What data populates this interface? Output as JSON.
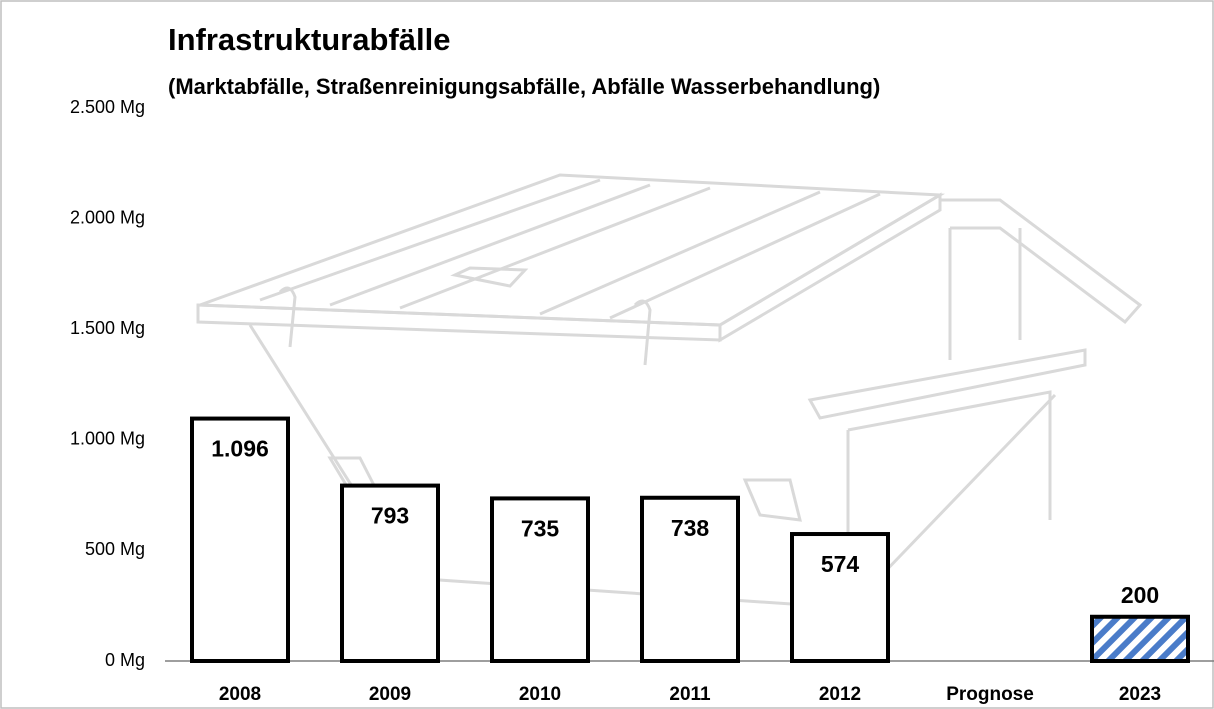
{
  "chart_data": {
    "type": "bar",
    "title": "Infrastrukturabfälle",
    "subtitle": "(Marktabfälle, Straßenreinigungsabfälle, Abfälle Wasserbehandlung)",
    "categories": [
      "2008",
      "2009",
      "2010",
      "2011",
      "2012",
      "Prognose",
      "2023"
    ],
    "values": [
      1096,
      793,
      735,
      738,
      574,
      null,
      200
    ],
    "value_labels": [
      "1.096",
      "793",
      "735",
      "738",
      "574",
      null,
      "200"
    ],
    "bar_styles": [
      "outline",
      "outline",
      "outline",
      "outline",
      "outline",
      null,
      "hatched"
    ],
    "color": "#000000",
    "hatch_color": "#4a7cc9",
    "ylim": [
      0,
      2500
    ],
    "yticks": [
      {
        "value": 0,
        "label": "0 Mg"
      },
      {
        "value": 500,
        "label": "500 Mg"
      },
      {
        "value": 1000,
        "label": "1.000 Mg"
      },
      {
        "value": 1500,
        "label": "1.500 Mg"
      },
      {
        "value": 2000,
        "label": "2.000 Mg"
      },
      {
        "value": 2500,
        "label": "2.500 Mg"
      }
    ],
    "grid": false
  }
}
